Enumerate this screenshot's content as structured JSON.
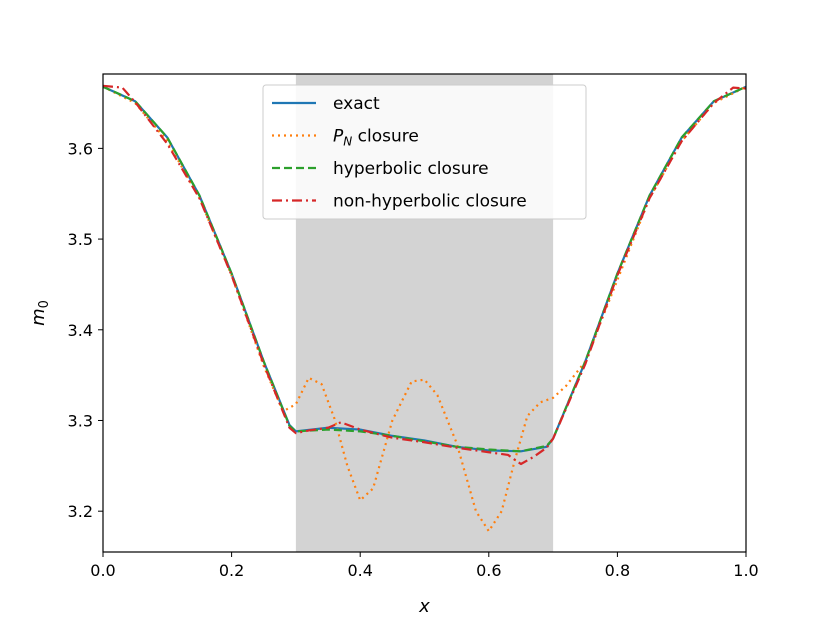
{
  "chart_data": {
    "type": "line",
    "xlabel": "x",
    "ylabel": "m",
    "ylabel_sub": "0",
    "xlim": [
      0.0,
      1.0
    ],
    "ylim": [
      3.155,
      3.682
    ],
    "xticks": [
      "0.0",
      "0.2",
      "0.4",
      "0.6",
      "0.8",
      "1.0"
    ],
    "yticks": [
      "3.2",
      "3.3",
      "3.4",
      "3.5",
      "3.6"
    ],
    "shaded_region": [
      0.3,
      0.7
    ],
    "shaded_color": "#d3d3d3",
    "legend_position": "upper-center",
    "series": [
      {
        "name": "exact",
        "color": "#1f77b4",
        "style": "solid",
        "x": [
          0.0,
          0.05,
          0.1,
          0.15,
          0.2,
          0.25,
          0.29,
          0.3,
          0.35,
          0.4,
          0.45,
          0.5,
          0.55,
          0.6,
          0.65,
          0.69,
          0.7,
          0.75,
          0.8,
          0.85,
          0.9,
          0.95,
          1.0
        ],
        "y": [
          3.668,
          3.652,
          3.612,
          3.548,
          3.462,
          3.365,
          3.295,
          3.288,
          3.292,
          3.29,
          3.283,
          3.278,
          3.271,
          3.267,
          3.266,
          3.271,
          3.28,
          3.365,
          3.462,
          3.548,
          3.612,
          3.652,
          3.668
        ]
      },
      {
        "name_main": "P",
        "name_sub": "N",
        "name_rest": " closure",
        "color": "#ff7f0e",
        "style": "dotted",
        "x": [
          0.0,
          0.05,
          0.1,
          0.15,
          0.2,
          0.25,
          0.28,
          0.3,
          0.32,
          0.34,
          0.36,
          0.38,
          0.4,
          0.42,
          0.45,
          0.48,
          0.5,
          0.52,
          0.55,
          0.58,
          0.6,
          0.62,
          0.64,
          0.66,
          0.68,
          0.7,
          0.72,
          0.75,
          0.8,
          0.85,
          0.9,
          0.95,
          1.0
        ],
        "y": [
          3.668,
          3.65,
          3.608,
          3.545,
          3.46,
          3.36,
          3.31,
          3.318,
          3.347,
          3.34,
          3.302,
          3.25,
          3.212,
          3.225,
          3.3,
          3.343,
          3.345,
          3.328,
          3.275,
          3.2,
          3.178,
          3.2,
          3.255,
          3.305,
          3.32,
          3.325,
          3.338,
          3.365,
          3.455,
          3.545,
          3.608,
          3.65,
          3.668
        ]
      },
      {
        "name": "hyperbolic closure",
        "color": "#2ca02c",
        "style": "dashed",
        "x": [
          0.0,
          0.05,
          0.1,
          0.15,
          0.2,
          0.25,
          0.29,
          0.3,
          0.35,
          0.4,
          0.45,
          0.5,
          0.55,
          0.6,
          0.65,
          0.69,
          0.7,
          0.75,
          0.8,
          0.85,
          0.9,
          0.95,
          1.0
        ],
        "y": [
          3.668,
          3.652,
          3.612,
          3.548,
          3.462,
          3.365,
          3.294,
          3.288,
          3.29,
          3.288,
          3.283,
          3.277,
          3.271,
          3.268,
          3.266,
          3.272,
          3.28,
          3.365,
          3.462,
          3.548,
          3.612,
          3.652,
          3.668
        ]
      },
      {
        "name": "non-hyperbolic closure",
        "color": "#d62728",
        "style": "dashdot",
        "x": [
          0.0,
          0.03,
          0.05,
          0.1,
          0.15,
          0.2,
          0.25,
          0.29,
          0.3,
          0.32,
          0.35,
          0.37,
          0.4,
          0.45,
          0.5,
          0.55,
          0.6,
          0.63,
          0.65,
          0.67,
          0.69,
          0.7,
          0.75,
          0.8,
          0.85,
          0.9,
          0.95,
          0.98,
          1.0
        ],
        "y": [
          3.669,
          3.667,
          3.651,
          3.605,
          3.545,
          3.46,
          3.362,
          3.292,
          3.286,
          3.289,
          3.292,
          3.298,
          3.29,
          3.281,
          3.276,
          3.27,
          3.265,
          3.262,
          3.252,
          3.26,
          3.27,
          3.28,
          3.362,
          3.46,
          3.545,
          3.608,
          3.65,
          3.667,
          3.666
        ]
      }
    ]
  }
}
